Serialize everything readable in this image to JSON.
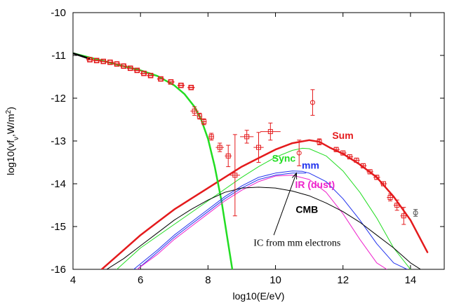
{
  "chart_data": {
    "type": "line",
    "title": "",
    "xlabel": "log10(E/eV)",
    "ylabel_parts": {
      "pre": "log10(νf",
      "sub": "ν",
      "mid": ",W/m",
      "sup": "2",
      "post": ")"
    },
    "xlim": [
      4,
      15
    ],
    "ylim": [
      -16,
      -10
    ],
    "xticks": [
      4,
      6,
      8,
      10,
      12,
      14
    ],
    "yticks": [
      -16,
      -15,
      -14,
      -13,
      -12,
      -11,
      -10
    ],
    "xtick_labels": [
      "4",
      "6",
      "8",
      "10",
      "12",
      "14"
    ],
    "ytick_labels": [
      "-16",
      "-15",
      "-14",
      "-13",
      "-12",
      "-11",
      "-10"
    ],
    "grid": false,
    "legend": "none",
    "series": [
      {
        "name": "Sum",
        "color": "#e41a1c",
        "width": 2.5,
        "x": [
          4.85,
          5.5,
          6.0,
          6.5,
          7.0,
          7.5,
          8.0,
          8.5,
          9.0,
          9.5,
          10.0,
          10.5,
          11.0,
          11.3,
          11.6,
          12.0,
          12.5,
          13.0,
          13.5,
          14.0,
          14.5
        ],
        "y": [
          -16.0,
          -15.55,
          -15.2,
          -14.9,
          -14.6,
          -14.35,
          -14.1,
          -13.85,
          -13.6,
          -13.4,
          -13.2,
          -13.05,
          -12.98,
          -13.02,
          -13.15,
          -13.3,
          -13.55,
          -13.85,
          -14.3,
          -14.85,
          -15.6
        ]
      },
      {
        "name": "Sync",
        "color": "#22dd22",
        "width": 2.5,
        "x": [
          4.0,
          4.5,
          5.0,
          5.5,
          6.0,
          6.5,
          7.0,
          7.3,
          7.6,
          7.8,
          8.0,
          8.2,
          8.4,
          8.6,
          8.72
        ],
        "y": [
          -10.95,
          -11.05,
          -11.15,
          -11.25,
          -11.35,
          -11.48,
          -11.7,
          -11.9,
          -12.2,
          -12.5,
          -12.95,
          -13.6,
          -14.4,
          -15.4,
          -16.0
        ]
      },
      {
        "name": "",
        "color": "#22dd22",
        "width": 1,
        "x": [
          5.3,
          6.0,
          7.0,
          8.0,
          9.0,
          9.5,
          10.0,
          10.5,
          10.8,
          11.0,
          11.5,
          12.0,
          12.5,
          13.0,
          13.5,
          14.0
        ],
        "y": [
          -16.0,
          -15.5,
          -14.95,
          -14.4,
          -13.85,
          -13.6,
          -13.38,
          -13.22,
          -13.17,
          -13.18,
          -13.35,
          -13.7,
          -14.2,
          -14.8,
          -15.5,
          -16.0
        ]
      },
      {
        "name": "mm",
        "color": "#2233ee",
        "width": 1,
        "x": [
          5.8,
          6.5,
          7.0,
          7.5,
          8.0,
          8.5,
          9.0,
          9.5,
          10.0,
          10.5,
          10.8,
          11.0,
          11.5,
          12.0,
          12.5,
          13.0,
          13.5,
          13.9
        ],
        "y": [
          -16.0,
          -15.55,
          -15.2,
          -14.9,
          -14.6,
          -14.3,
          -14.05,
          -13.85,
          -13.75,
          -13.7,
          -13.71,
          -13.75,
          -13.95,
          -14.35,
          -14.85,
          -15.4,
          -15.85,
          -16.0
        ]
      },
      {
        "name": "",
        "color": "#2233ee",
        "width": 1,
        "x": [
          5.9,
          6.5,
          7.0,
          7.5,
          8.0,
          8.5,
          9.0,
          9.5,
          10.0,
          10.5,
          10.9
        ],
        "y": [
          -16.0,
          -15.6,
          -15.25,
          -14.95,
          -14.65,
          -14.35,
          -14.1,
          -13.9,
          -13.8,
          -13.75,
          -13.75
        ]
      },
      {
        "name": "IR (dust)",
        "color": "#ee22cc",
        "width": 1,
        "x": [
          5.9,
          6.5,
          7.0,
          7.5,
          8.0,
          8.5,
          9.0,
          9.5,
          10.0,
          10.5,
          11.0,
          11.5,
          12.0,
          12.5,
          13.0,
          13.3
        ],
        "y": [
          -16.0,
          -15.65,
          -15.3,
          -15.0,
          -14.7,
          -14.4,
          -14.15,
          -13.95,
          -13.82,
          -13.8,
          -13.9,
          -14.2,
          -14.7,
          -15.3,
          -15.85,
          -16.0
        ]
      },
      {
        "name": "CMB",
        "color": "#000000",
        "width": 1,
        "x": [
          5.0,
          5.5,
          6.0,
          6.5,
          7.0,
          7.5,
          8.0,
          8.5,
          9.0,
          9.5,
          10.0,
          10.5,
          11.0,
          11.5,
          12.0,
          12.5,
          13.0,
          13.5,
          14.0,
          14.3
        ],
        "y": [
          -16.0,
          -15.75,
          -15.45,
          -15.15,
          -14.85,
          -14.6,
          -14.38,
          -14.2,
          -14.1,
          -14.08,
          -14.1,
          -14.17,
          -14.28,
          -14.45,
          -14.65,
          -14.9,
          -15.2,
          -15.5,
          -15.85,
          -16.0
        ]
      }
    ],
    "observations": {
      "color": "#e41a1c",
      "dense_band": [
        [
          4.5,
          -11.1
        ],
        [
          4.7,
          -11.12
        ],
        [
          4.9,
          -11.14
        ],
        [
          5.1,
          -11.16
        ],
        [
          5.3,
          -11.2
        ],
        [
          5.5,
          -11.25
        ],
        [
          5.7,
          -11.3
        ],
        [
          5.9,
          -11.35
        ],
        [
          6.1,
          -11.42
        ],
        [
          6.3,
          -11.47
        ],
        [
          6.6,
          -11.55
        ],
        [
          6.9,
          -11.62
        ],
        [
          7.2,
          -11.7
        ],
        [
          7.5,
          -11.75
        ]
      ],
      "points": [
        {
          "x": 7.6,
          "y": -12.3,
          "dx": 0.12,
          "dy": 0.1
        },
        {
          "x": 7.75,
          "y": -12.42,
          "dx": 0.08,
          "dy": 0.07
        },
        {
          "x": 7.88,
          "y": -12.55,
          "dx": 0.08,
          "dy": 0.07
        },
        {
          "x": 8.1,
          "y": -12.9,
          "dx": 0.08,
          "dy": 0.08
        },
        {
          "x": 8.35,
          "y": -13.15,
          "dx": 0.12,
          "dy": 0.1
        },
        {
          "x": 8.6,
          "y": -13.35,
          "dx": 0.1,
          "dy": 0.25
        },
        {
          "x": 8.8,
          "y": -13.8,
          "dx": 0.15,
          "dy": 0.95
        },
        {
          "x": 9.15,
          "y": -12.9,
          "dx": 0.2,
          "dy": 0.15
        },
        {
          "x": 9.5,
          "y": -13.15,
          "dx": 0.15,
          "dy": 0.35
        },
        {
          "x": 9.85,
          "y": -12.78,
          "dx": 0.3,
          "dy": 0.2
        },
        {
          "x": 10.7,
          "y": -13.28,
          "dx": 0.0,
          "dy": 0.3,
          "marker": "circle"
        },
        {
          "x": 11.1,
          "y": -12.1,
          "dx": 0.0,
          "dy": 0.3,
          "marker": "circle"
        },
        {
          "x": 11.3,
          "y": -13.02,
          "dx": 0.0,
          "dy": 0.07
        },
        {
          "x": 11.8,
          "y": -13.2,
          "dx": 0.1,
          "dy": 0.05
        },
        {
          "x": 12.0,
          "y": -13.28,
          "dx": 0.1,
          "dy": 0.05
        },
        {
          "x": 12.2,
          "y": -13.37,
          "dx": 0.1,
          "dy": 0.05
        },
        {
          "x": 12.4,
          "y": -13.45,
          "dx": 0.1,
          "dy": 0.05
        },
        {
          "x": 12.6,
          "y": -13.58,
          "dx": 0.1,
          "dy": 0.05
        },
        {
          "x": 12.8,
          "y": -13.72,
          "dx": 0.1,
          "dy": 0.05
        },
        {
          "x": 13.0,
          "y": -13.85,
          "dx": 0.1,
          "dy": 0.05
        },
        {
          "x": 13.2,
          "y": -14.0,
          "dx": 0.1,
          "dy": 0.05
        },
        {
          "x": 13.4,
          "y": -14.32,
          "dx": 0.1,
          "dy": 0.08
        },
        {
          "x": 13.6,
          "y": -14.5,
          "dx": 0.1,
          "dy": 0.12
        },
        {
          "x": 13.8,
          "y": -14.75,
          "dx": 0.1,
          "dy": 0.2
        },
        {
          "x": 14.15,
          "y": -14.68,
          "dx": 0.0,
          "dy": 0.08,
          "marker": "circle",
          "color": "#555555"
        }
      ]
    },
    "labels": [
      {
        "text": "Sum",
        "color": "#e41a1c",
        "x": 11.68,
        "y": -12.95
      },
      {
        "text": "Sync",
        "color": "#22dd22",
        "x": 9.9,
        "y": -13.48
      },
      {
        "text": "mm",
        "color": "#2233ee",
        "x": 10.78,
        "y": -13.65
      },
      {
        "text": "IR (dust)",
        "color": "#ee22cc",
        "x": 10.58,
        "y": -14.1
      },
      {
        "text": "CMB",
        "color": "#000000",
        "x": 10.6,
        "y": -14.68
      }
    ],
    "annotation": {
      "text": "IC from mm electrons",
      "x": 9.35,
      "y": -15.45,
      "arrow_from": [
        9.95,
        -15.2
      ],
      "arrow_to": [
        10.62,
        -13.75
      ]
    }
  }
}
